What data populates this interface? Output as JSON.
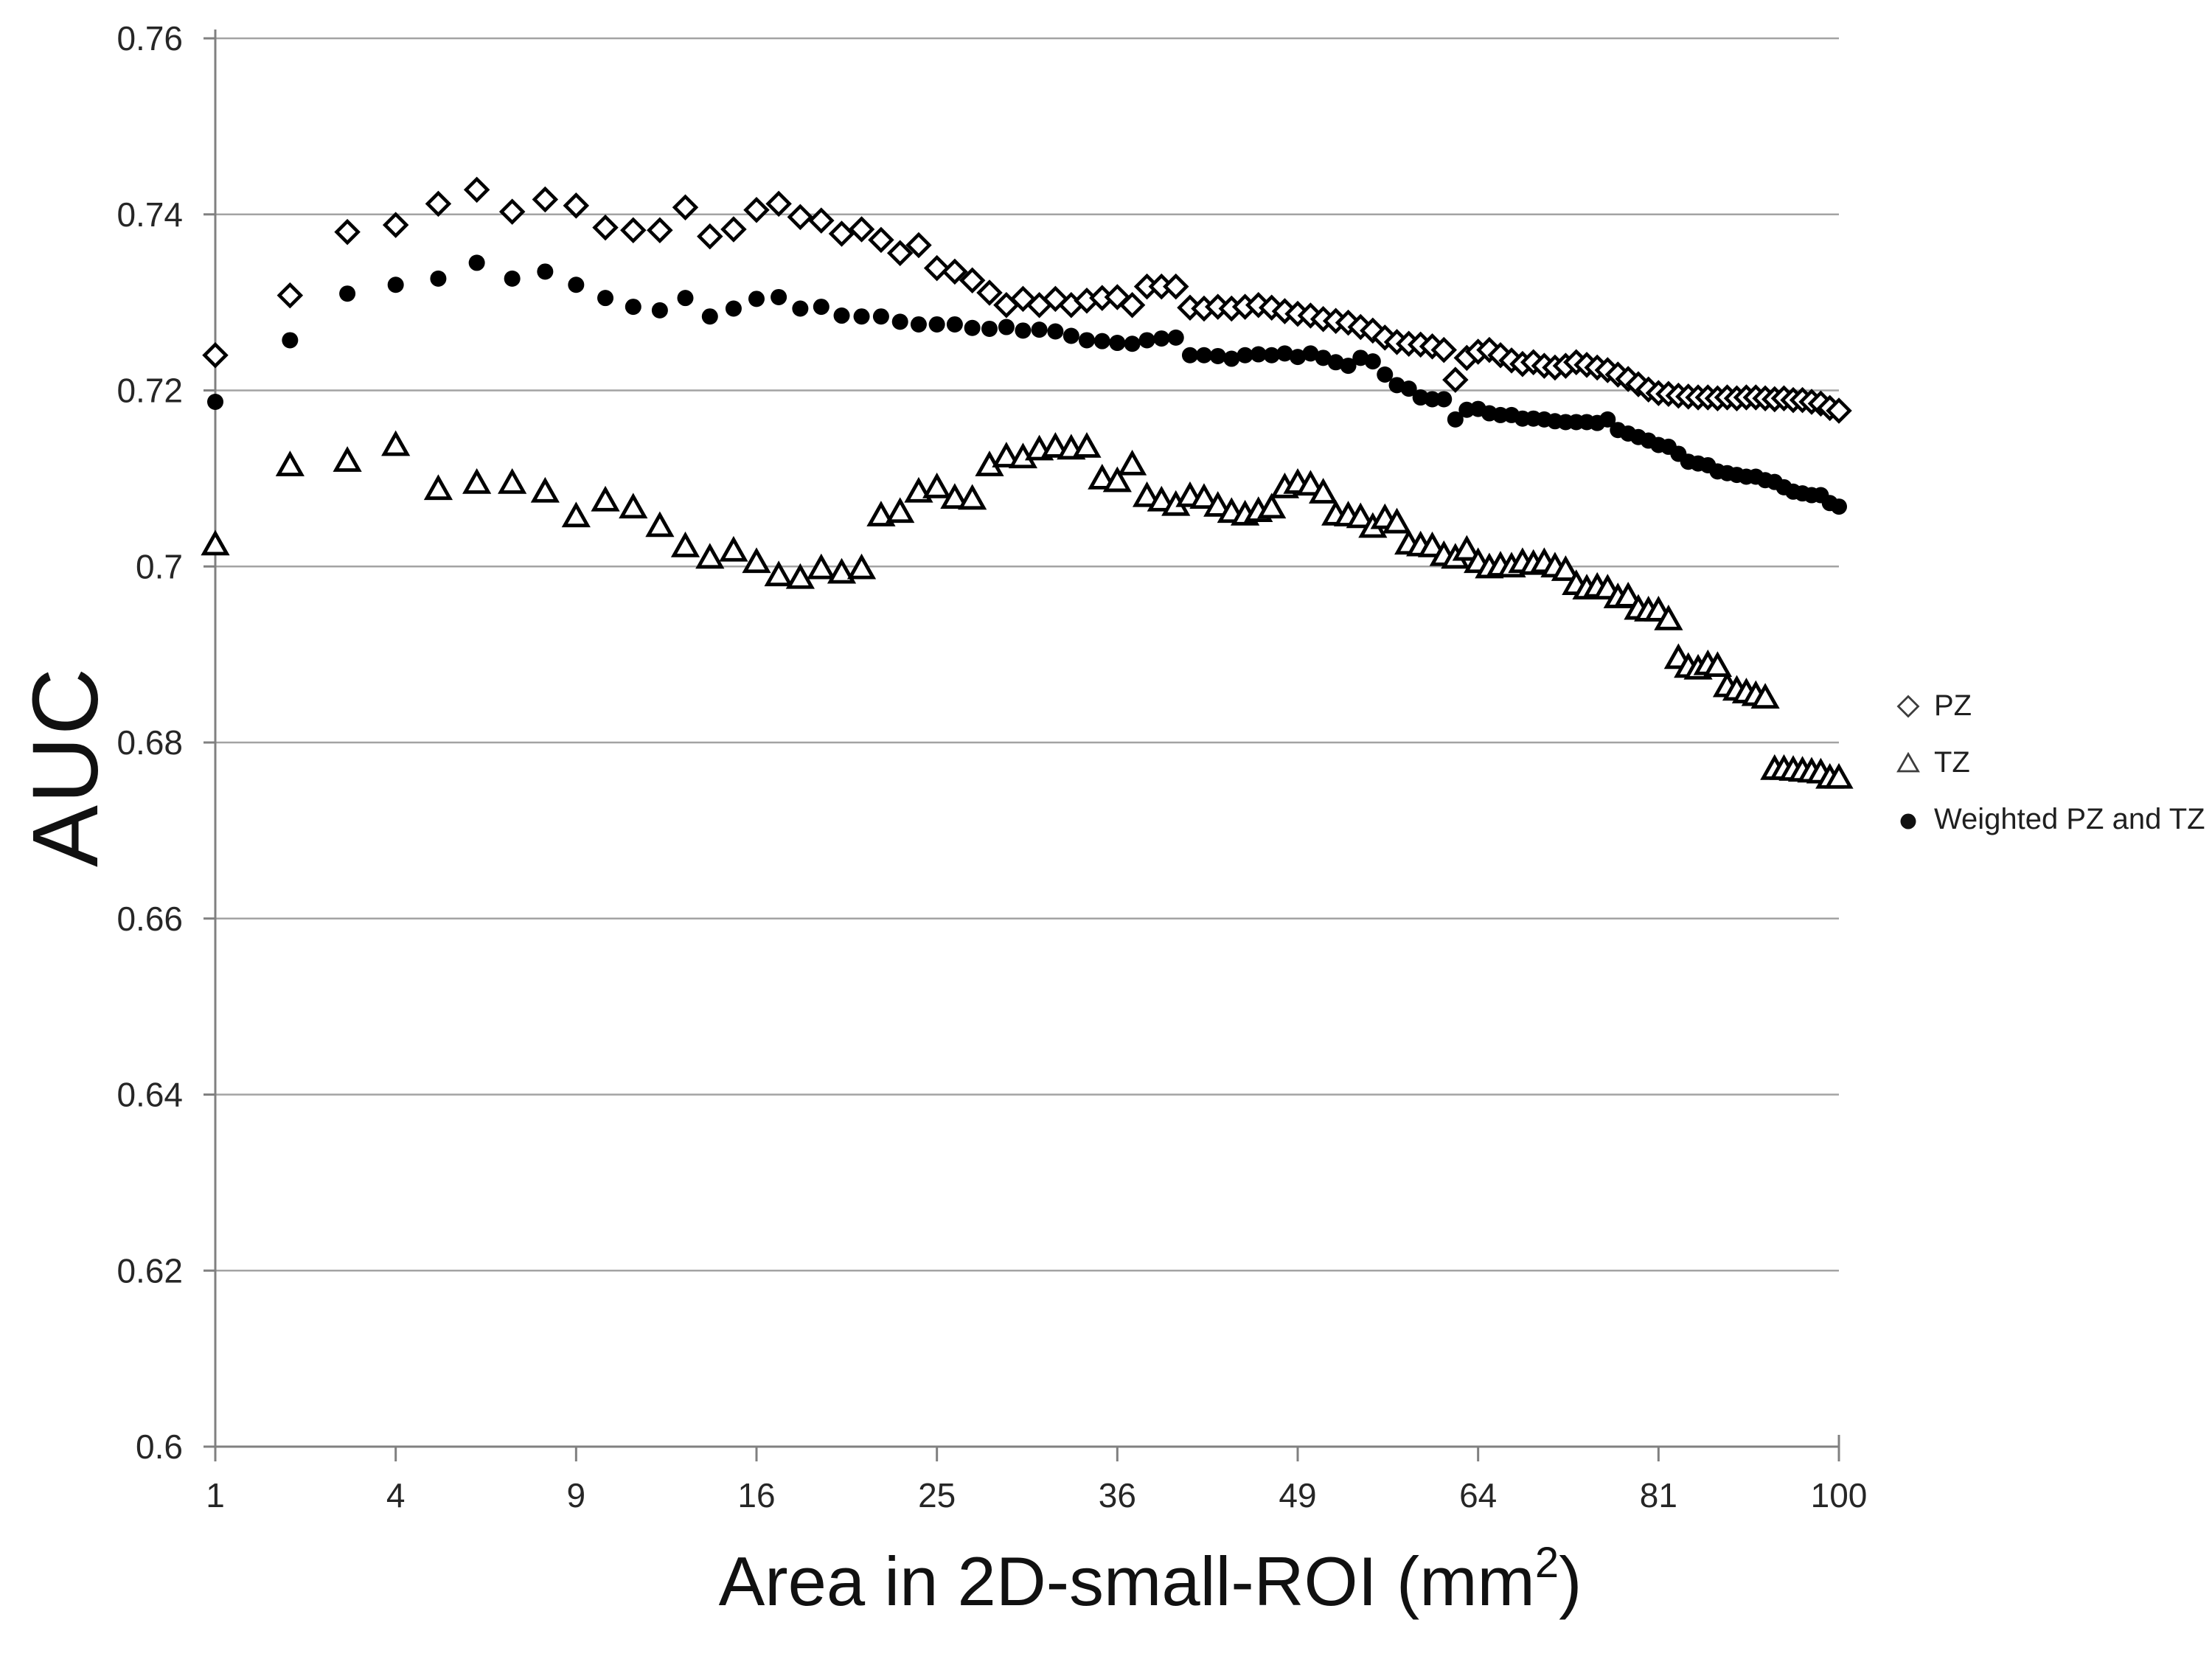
{
  "chart_data": {
    "type": "scatter",
    "title": "",
    "ylabel": "AUC",
    "x_axis_title": {
      "pre": "Area in 2D-small-ROI (mm",
      "sup": "2",
      "post": ")"
    },
    "x_scale": "sqrt",
    "grid": true,
    "legend_position": "right",
    "axis_range": {
      "x_min": 1,
      "x_max": 100,
      "y_min": 0.6,
      "y_max": 0.76
    },
    "x_ticks": [
      {
        "label": "1",
        "value": 1
      },
      {
        "label": "4",
        "value": 4
      },
      {
        "label": "9",
        "value": 9
      },
      {
        "label": "16",
        "value": 16
      },
      {
        "label": "25",
        "value": 25
      },
      {
        "label": "36",
        "value": 36
      },
      {
        "label": "49",
        "value": 49
      },
      {
        "label": "64",
        "value": 64
      },
      {
        "label": "81",
        "value": 81
      },
      {
        "label": "100",
        "value": 100
      }
    ],
    "y_ticks": [
      {
        "label": "0.76",
        "value": 0.76
      },
      {
        "label": "0.74",
        "value": 0.74
      },
      {
        "label": "0.72",
        "value": 0.72
      },
      {
        "label": "0.7",
        "value": 0.7
      },
      {
        "label": "0.68",
        "value": 0.68
      },
      {
        "label": "0.66",
        "value": 0.66
      },
      {
        "label": "0.64",
        "value": 0.64
      },
      {
        "label": "0.62",
        "value": 0.62
      },
      {
        "label": "0.6",
        "value": 0.6
      }
    ],
    "x": [
      1,
      2,
      3,
      4,
      5,
      6,
      7,
      8,
      9,
      10,
      11,
      12,
      13,
      14,
      15,
      16,
      17,
      18,
      19,
      20,
      21,
      22,
      23,
      24,
      25,
      26,
      27,
      28,
      29,
      30,
      31,
      32,
      33,
      34,
      35,
      36,
      37,
      38,
      39,
      40,
      41,
      42,
      43,
      44,
      45,
      46,
      47,
      48,
      49,
      50,
      51,
      52,
      53,
      54,
      55,
      56,
      57,
      58,
      59,
      60,
      61,
      62,
      63,
      64,
      65,
      66,
      67,
      68,
      69,
      70,
      71,
      72,
      73,
      74,
      75,
      76,
      77,
      78,
      79,
      80,
      81,
      82,
      83,
      84,
      85,
      86,
      87,
      88,
      89,
      90,
      91,
      92,
      93,
      94,
      95,
      96,
      97,
      98,
      99,
      100
    ],
    "series": [
      {
        "name": "PZ",
        "marker": "diamond",
        "values": [
          0.724,
          0.7308,
          0.738,
          0.7388,
          0.7412,
          0.7428,
          0.7403,
          0.7417,
          0.741,
          0.7385,
          0.7382,
          0.7382,
          0.7408,
          0.7375,
          0.7383,
          0.7405,
          0.7412,
          0.7397,
          0.7393,
          0.7378,
          0.7383,
          0.7371,
          0.7356,
          0.7365,
          0.7339,
          0.7335,
          0.7325,
          0.7311,
          0.7297,
          0.7304,
          0.7297,
          0.7304,
          0.7297,
          0.7302,
          0.7305,
          0.7306,
          0.7297,
          0.7318,
          0.7318,
          0.7318,
          0.7294,
          0.7293,
          0.7295,
          0.7293,
          0.7295,
          0.7297,
          0.7294,
          0.729,
          0.7287,
          0.7285,
          0.7281,
          0.7279,
          0.7277,
          0.7272,
          0.7268,
          0.726,
          0.7255,
          0.7253,
          0.7252,
          0.725,
          0.7246,
          0.7212,
          0.7237,
          0.7244,
          0.7246,
          0.724,
          0.7234,
          0.723,
          0.7232,
          0.7228,
          0.7226,
          0.7228,
          0.7232,
          0.7229,
          0.7226,
          0.7223,
          0.7218,
          0.7213,
          0.7207,
          0.7201,
          0.7197,
          0.7196,
          0.7194,
          0.7193,
          0.7192,
          0.7192,
          0.7191,
          0.7192,
          0.7191,
          0.7192,
          0.7192,
          0.7191,
          0.719,
          0.7191,
          0.7189,
          0.7189,
          0.7187,
          0.7185,
          0.718,
          0.7177
        ]
      },
      {
        "name": "TZ",
        "marker": "triangle",
        "values": [
          0.7025,
          0.7115,
          0.712,
          0.7138,
          0.7088,
          0.7095,
          0.7095,
          0.7085,
          0.7057,
          0.7075,
          0.7067,
          0.7046,
          0.7023,
          0.701,
          0.7018,
          0.7005,
          0.699,
          0.6987,
          0.6998,
          0.6993,
          0.6998,
          0.7058,
          0.7062,
          0.7085,
          0.709,
          0.7078,
          0.7077,
          0.7115,
          0.7125,
          0.7124,
          0.7133,
          0.7136,
          0.7134,
          0.7136,
          0.71,
          0.7097,
          0.7116,
          0.708,
          0.7075,
          0.707,
          0.708,
          0.7078,
          0.7069,
          0.7062,
          0.7059,
          0.7063,
          0.7067,
          0.709,
          0.7095,
          0.7093,
          0.7084,
          0.7059,
          0.7058,
          0.7056,
          0.7045,
          0.7055,
          0.705,
          0.7026,
          0.7024,
          0.7023,
          0.7013,
          0.701,
          0.7019,
          0.7005,
          0.6999,
          0.7001,
          0.7,
          0.7005,
          0.7003,
          0.7005,
          0.7,
          0.6996,
          0.698,
          0.6975,
          0.6977,
          0.6975,
          0.6965,
          0.6966,
          0.6952,
          0.695,
          0.695,
          0.694,
          0.6896,
          0.6886,
          0.6884,
          0.6889,
          0.6887,
          0.6864,
          0.686,
          0.6857,
          0.6854,
          0.6851,
          0.677,
          0.677,
          0.6769,
          0.6768,
          0.6767,
          0.6766,
          0.676,
          0.676
        ]
      },
      {
        "name": "Weighted PZ and TZ",
        "marker": "circle",
        "values": [
          0.7187,
          0.7257,
          0.731,
          0.732,
          0.7327,
          0.7345,
          0.7327,
          0.7335,
          0.732,
          0.7305,
          0.7295,
          0.7291,
          0.7305,
          0.7284,
          0.7293,
          0.7304,
          0.7306,
          0.7293,
          0.7295,
          0.7285,
          0.7284,
          0.7284,
          0.7278,
          0.7275,
          0.7275,
          0.7275,
          0.7271,
          0.727,
          0.7272,
          0.7268,
          0.7269,
          0.7267,
          0.7262,
          0.7257,
          0.7256,
          0.7254,
          0.7253,
          0.7257,
          0.7259,
          0.726,
          0.724,
          0.724,
          0.7239,
          0.7236,
          0.724,
          0.7241,
          0.724,
          0.7242,
          0.7238,
          0.7242,
          0.7237,
          0.7232,
          0.7228,
          0.7237,
          0.7233,
          0.7218,
          0.7206,
          0.7202,
          0.7192,
          0.719,
          0.719,
          0.7167,
          0.7178,
          0.7179,
          0.7174,
          0.7172,
          0.7172,
          0.7168,
          0.7168,
          0.7167,
          0.7165,
          0.7164,
          0.7164,
          0.7164,
          0.7163,
          0.7167,
          0.7155,
          0.7151,
          0.7147,
          0.7143,
          0.7138,
          0.7136,
          0.7128,
          0.7119,
          0.7117,
          0.7115,
          0.7108,
          0.7106,
          0.7104,
          0.7102,
          0.7102,
          0.7098,
          0.7096,
          0.709,
          0.7085,
          0.7083,
          0.7081,
          0.7081,
          0.7072,
          0.7068
        ]
      }
    ]
  },
  "legend": {
    "items": [
      {
        "label": "PZ",
        "marker": "diamond"
      },
      {
        "label": "TZ",
        "marker": "triangle"
      },
      {
        "label": "Weighted PZ and TZ",
        "marker": "circle"
      }
    ]
  },
  "colors": {
    "marker": "#000000",
    "grid": "#a3a3a3",
    "axis": "#808080",
    "tick_text": "#262626",
    "legend_outline": "#3d3d3d"
  }
}
